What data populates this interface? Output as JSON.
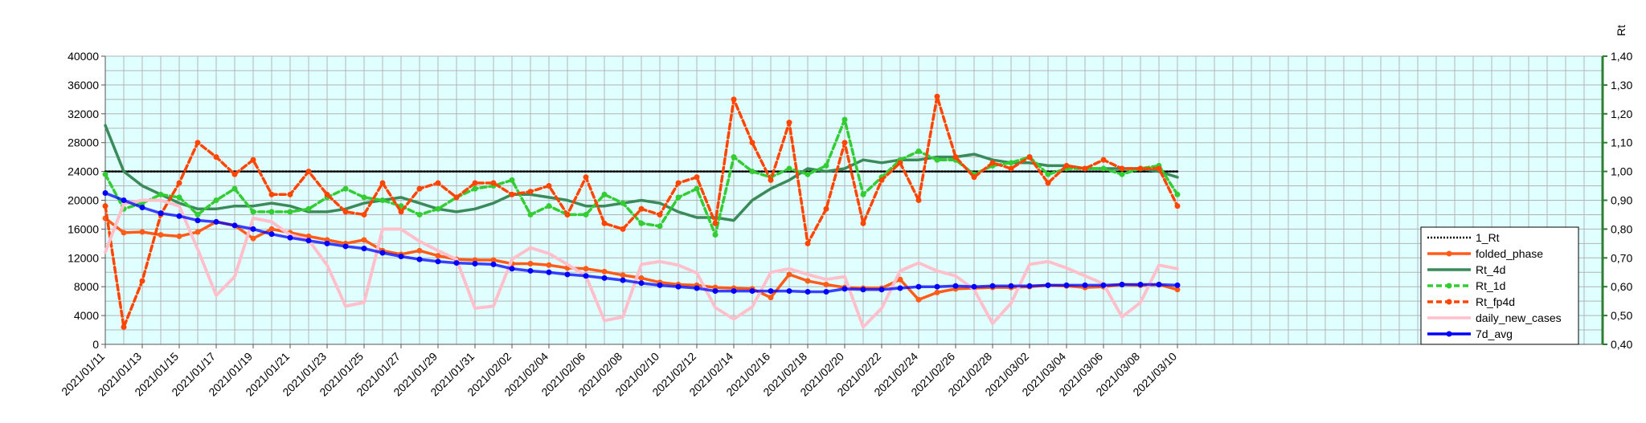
{
  "chart_data": {
    "type": "line",
    "x": [
      "2021/01/11",
      "2021/01/12",
      "2021/01/13",
      "2021/01/14",
      "2021/01/15",
      "2021/01/16",
      "2021/01/17",
      "2021/01/18",
      "2021/01/19",
      "2021/01/20",
      "2021/01/21",
      "2021/01/22",
      "2021/01/23",
      "2021/01/24",
      "2021/01/25",
      "2021/01/26",
      "2021/01/27",
      "2021/01/28",
      "2021/01/29",
      "2021/01/30",
      "2021/01/31",
      "2021/02/01",
      "2021/02/02",
      "2021/02/03",
      "2021/02/04",
      "2021/02/05",
      "2021/02/06",
      "2021/02/07",
      "2021/02/08",
      "2021/02/09",
      "2021/02/10",
      "2021/02/11",
      "2021/02/12",
      "2021/02/13",
      "2021/02/14",
      "2021/02/15",
      "2021/02/16",
      "2021/02/17",
      "2021/02/18",
      "2021/02/19",
      "2021/02/20",
      "2021/02/21",
      "2021/02/22",
      "2021/02/23",
      "2021/02/24",
      "2021/02/25",
      "2021/02/26",
      "2021/02/27",
      "2021/02/28",
      "2021/03/01",
      "2021/03/02",
      "2021/03/03",
      "2021/03/04",
      "2021/03/05",
      "2021/03/06",
      "2021/03/07",
      "2021/03/08",
      "2021/03/09",
      "2021/03/10"
    ],
    "x_tick_labels": [
      "2021/01/11",
      "2021/01/13",
      "2021/01/15",
      "2021/01/17",
      "2021/01/19",
      "2021/01/21",
      "2021/01/23",
      "2021/01/25",
      "2021/01/27",
      "2021/01/29",
      "2021/01/31",
      "2021/02/02",
      "2021/02/04",
      "2021/02/06",
      "2021/02/08",
      "2021/02/10",
      "2021/02/12",
      "2021/02/14",
      "2021/02/16",
      "2021/02/18",
      "2021/02/20",
      "2021/02/22",
      "2021/02/24",
      "2021/02/26",
      "2021/02/28",
      "2021/03/02",
      "2021/03/04",
      "2021/03/06",
      "2021/03/08",
      "2021/03/10"
    ],
    "x_axis_extra_empty_days": 22,
    "y_left": {
      "min": 0,
      "max": 40000,
      "step": 4000,
      "tick_labels": [
        "0",
        "4000",
        "8000",
        "12000",
        "16000",
        "20000",
        "24000",
        "28000",
        "32000",
        "36000",
        "40000"
      ]
    },
    "y_right": {
      "label": "Rt",
      "min": 0.4,
      "max": 1.4,
      "step": 0.1,
      "tick_labels": [
        "0,40",
        "0,50",
        "0,60",
        "0,70",
        "0,80",
        "0,90",
        "1,00",
        "1,10",
        "1,20",
        "1,30",
        "1,40"
      ]
    },
    "grid": true,
    "legend_position": "right",
    "background_color": "#e0ffff",
    "grid_color": "#b3b3b3",
    "series": [
      {
        "name": "1_Rt",
        "axis": "right",
        "color": "#000000",
        "style": "dotted",
        "marker": false,
        "values": [
          1.0,
          1.0,
          1.0,
          1.0,
          1.0,
          1.0,
          1.0,
          1.0,
          1.0,
          1.0,
          1.0,
          1.0,
          1.0,
          1.0,
          1.0,
          1.0,
          1.0,
          1.0,
          1.0,
          1.0,
          1.0,
          1.0,
          1.0,
          1.0,
          1.0,
          1.0,
          1.0,
          1.0,
          1.0,
          1.0,
          1.0,
          1.0,
          1.0,
          1.0,
          1.0,
          1.0,
          1.0,
          1.0,
          1.0,
          1.0,
          1.0,
          1.0,
          1.0,
          1.0,
          1.0,
          1.0,
          1.0,
          1.0,
          1.0,
          1.0,
          1.0,
          1.0,
          1.0,
          1.0,
          1.0,
          1.0,
          1.0,
          1.0,
          1.0
        ]
      },
      {
        "name": "folded_phase",
        "axis": "left",
        "color": "#ff5c1a",
        "style": "solid",
        "marker": true,
        "values": [
          17500,
          15500,
          15600,
          15200,
          15000,
          15600,
          17000,
          16500,
          14700,
          16000,
          15500,
          15000,
          14500,
          14000,
          14500,
          13000,
          12500,
          13000,
          12300,
          11800,
          11700,
          11700,
          11200,
          11200,
          11000,
          10600,
          10500,
          10100,
          9600,
          9200,
          8600,
          8300,
          8200,
          7900,
          7800,
          7700,
          6500,
          9700,
          8800,
          8300,
          7900,
          7800,
          7800,
          9000,
          6200,
          7200,
          7700,
          7800,
          7900,
          7900,
          8000,
          8200,
          8100,
          7900,
          8000,
          8300,
          8200,
          8300,
          7600
        ]
      },
      {
        "name": "Rt_4d",
        "axis": "right",
        "color": "#3a8a5a",
        "style": "solid",
        "marker": false,
        "values": [
          1.16,
          1.0,
          0.95,
          0.92,
          0.89,
          0.87,
          0.87,
          0.88,
          0.88,
          0.89,
          0.88,
          0.86,
          0.86,
          0.87,
          0.89,
          0.9,
          0.91,
          0.89,
          0.87,
          0.86,
          0.87,
          0.89,
          0.92,
          0.92,
          0.91,
          0.9,
          0.88,
          0.88,
          0.89,
          0.9,
          0.89,
          0.86,
          0.84,
          0.84,
          0.83,
          0.9,
          0.94,
          0.97,
          1.01,
          1.0,
          1.01,
          1.04,
          1.03,
          1.04,
          1.04,
          1.05,
          1.05,
          1.06,
          1.04,
          1.03,
          1.03,
          1.02,
          1.02,
          1.01,
          1.01,
          1.01,
          1.01,
          1.0,
          0.98
        ]
      },
      {
        "name": "Rt_1d",
        "axis": "right",
        "color": "#33cc33",
        "style": "dashed",
        "marker": true,
        "values": [
          0.99,
          0.87,
          0.89,
          0.92,
          0.91,
          0.85,
          0.9,
          0.94,
          0.86,
          0.86,
          0.86,
          0.87,
          0.91,
          0.94,
          0.91,
          0.9,
          0.88,
          0.85,
          0.87,
          0.91,
          0.94,
          0.95,
          0.97,
          0.85,
          0.88,
          0.85,
          0.85,
          0.92,
          0.89,
          0.82,
          0.81,
          0.91,
          0.94,
          0.78,
          1.05,
          1.0,
          0.98,
          1.01,
          0.99,
          1.02,
          1.18,
          0.92,
          0.98,
          1.04,
          1.07,
          1.04,
          1.04,
          0.99,
          1.02,
          1.03,
          1.05,
          0.99,
          1.01,
          1.01,
          1.01,
          0.99,
          1.01,
          1.02,
          0.92
        ]
      },
      {
        "name": "Rt_fp4d",
        "axis": "right",
        "color": "#ff4500",
        "style": "dashed",
        "marker": true,
        "values": [
          0.88,
          0.46,
          0.62,
          0.85,
          0.96,
          1.1,
          1.05,
          0.99,
          1.04,
          0.92,
          0.92,
          1.0,
          0.92,
          0.86,
          0.85,
          0.96,
          0.86,
          0.94,
          0.96,
          0.91,
          0.96,
          0.96,
          0.92,
          0.93,
          0.95,
          0.85,
          0.98,
          0.82,
          0.8,
          0.87,
          0.85,
          0.96,
          0.98,
          0.82,
          1.25,
          1.1,
          0.97,
          1.17,
          0.75,
          0.87,
          1.1,
          0.82,
          0.97,
          1.03,
          0.9,
          1.26,
          1.05,
          0.98,
          1.03,
          1.01,
          1.05,
          0.96,
          1.02,
          1.01,
          1.04,
          1.01,
          1.01,
          1.01,
          0.88
        ]
      },
      {
        "name": "daily_new_cases",
        "axis": "left",
        "color": "#ffc0cb",
        "style": "solid",
        "marker": false,
        "values": [
          12800,
          19500,
          20000,
          20000,
          19200,
          13200,
          6800,
          9400,
          17500,
          17000,
          15200,
          14500,
          11000,
          5300,
          5800,
          16000,
          16000,
          14300,
          13000,
          11800,
          5000,
          5300,
          11800,
          13400,
          12600,
          11100,
          9500,
          3300,
          3800,
          11100,
          11500,
          11000,
          9900,
          5100,
          3500,
          5200,
          10000,
          10500,
          9700,
          9000,
          9400,
          2400,
          5000,
          10200,
          11300,
          10200,
          9500,
          7600,
          2900,
          5700,
          11100,
          11500,
          10600,
          9500,
          8400,
          3800,
          5800,
          11000,
          10500
        ]
      },
      {
        "name": "7d_avg",
        "axis": "left",
        "color": "#0000ff",
        "style": "solid",
        "marker": true,
        "values": [
          21000,
          20000,
          19000,
          18200,
          17800,
          17200,
          17000,
          16500,
          16000,
          15300,
          14800,
          14400,
          14000,
          13600,
          13300,
          12700,
          12200,
          11800,
          11500,
          11300,
          11200,
          11100,
          10500,
          10200,
          10000,
          9700,
          9500,
          9200,
          8900,
          8500,
          8200,
          8000,
          7800,
          7400,
          7400,
          7400,
          7400,
          7400,
          7300,
          7300,
          7700,
          7600,
          7600,
          7800,
          8000,
          8000,
          8100,
          8000,
          8100,
          8100,
          8100,
          8200,
          8200,
          8200,
          8200,
          8300,
          8300,
          8300,
          8200
        ]
      }
    ]
  }
}
